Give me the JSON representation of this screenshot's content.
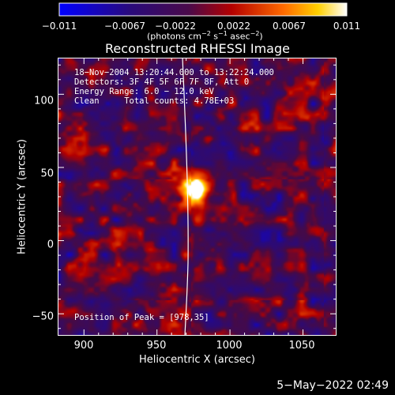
{
  "colorbar": {
    "ticks": [
      "−0.011",
      "−0.0067",
      "−0.0022",
      "0.0022",
      "0.0067",
      "0.011"
    ],
    "tick_values": [
      -0.011,
      -0.0067,
      -0.0022,
      0.0022,
      0.0067,
      0.011
    ],
    "units_main": "(photons cm",
    "units_sup1": "−2",
    "units_mid": " s",
    "units_sup2": "−1",
    "units_end": " asec",
    "units_sup3": "−2",
    "units_close": ")",
    "colormap": "black-blue-purple-red-orange-yellow-white"
  },
  "chart_data": {
    "type": "heatmap",
    "title": "Reconstructed RHESSI Image",
    "xlabel": "Heliocentric X (arcsec)",
    "ylabel": "Heliocentric Y (arcsec)",
    "xlim": [
      882,
      1073
    ],
    "ylim": [
      -65,
      125
    ],
    "x_ticks": [
      900,
      950,
      1000,
      1050
    ],
    "y_ticks": [
      -50,
      0,
      50,
      100
    ],
    "x_tick_labels": [
      "900",
      "950",
      "1000",
      "1050"
    ],
    "y_tick_labels": [
      "−50",
      "0",
      "50",
      "100"
    ],
    "value_range": [
      -0.011,
      0.011
    ],
    "peak_position": [
      978,
      35
    ],
    "peak_value": 0.011,
    "limb_line": "white solar limb curve near X ≈ 966–970",
    "annotations": {
      "line1": "18−Nov−2004 13:20:44.000 to 13:22:24.000",
      "line2": "Detectors: 3F 4F 5F 6F 7F 8F, Att 0",
      "line3": "Energy Range: 6.0 − 12.0 keV",
      "line4": "Clean     Total counts: 4.78E+03",
      "peak": "Position of Peak = [978,35]"
    }
  },
  "footer": {
    "timestamp": "5−May−2022 02:49"
  }
}
